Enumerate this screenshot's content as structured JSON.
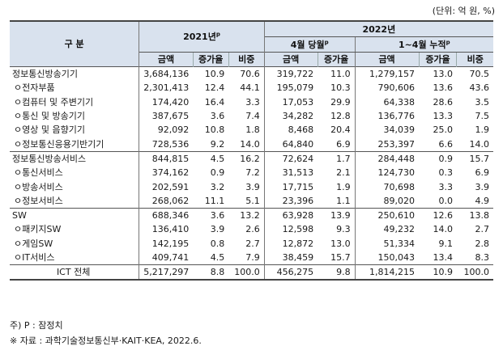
{
  "unit_note": "(단위: 억 원, %)",
  "header": {
    "category": "구   분",
    "year2021": "2021년",
    "year2021_sup": "p",
    "year2022": "2022년",
    "april_month": "4월 당월",
    "april_month_sup": "p",
    "jan_apr": "1~4월 누적",
    "jan_apr_sup": "p",
    "amount": "금액",
    "growth": "증가율",
    "share": "비중"
  },
  "rows": [
    {
      "label": "정보통신방송기기",
      "level": "main",
      "v": [
        "3,684,136",
        "10.9",
        "70.6",
        "319,722",
        "11.0",
        "1,279,157",
        "13.0",
        "70.5"
      ]
    },
    {
      "label": "ㅇ전자부품",
      "level": "sub",
      "v": [
        "2,301,413",
        "12.4",
        "44.1",
        "195,079",
        "10.3",
        "790,606",
        "13.6",
        "43.6"
      ]
    },
    {
      "label": "ㅇ컴퓨터 및 주변기기",
      "level": "sub",
      "v": [
        "174,420",
        "16.4",
        "3.3",
        "17,053",
        "29.9",
        "64,338",
        "28.6",
        "3.5"
      ]
    },
    {
      "label": "ㅇ통신 및 방송기기",
      "level": "sub",
      "v": [
        "387,675",
        "3.6",
        "7.4",
        "34,282",
        "12.8",
        "136,776",
        "13.3",
        "7.5"
      ]
    },
    {
      "label": "ㅇ영상 및 음향기기",
      "level": "sub",
      "v": [
        "92,092",
        "10.8",
        "1.8",
        "8,468",
        "20.4",
        "34,039",
        "25.0",
        "1.9"
      ]
    },
    {
      "label": "ㅇ정보통신응용기반기기",
      "level": "sub",
      "v": [
        "728,536",
        "9.2",
        "14.0",
        "64,840",
        "6.9",
        "253,397",
        "6.6",
        "14.0"
      ]
    },
    {
      "label": "정보통신방송서비스",
      "level": "main",
      "v": [
        "844,815",
        "4.5",
        "16.2",
        "72,624",
        "1.7",
        "284,448",
        "0.9",
        "15.7"
      ]
    },
    {
      "label": "ㅇ통신서비스",
      "level": "sub",
      "v": [
        "374,162",
        "0.9",
        "7.2",
        "31,513",
        "2.1",
        "124,730",
        "0.3",
        "6.9"
      ]
    },
    {
      "label": "ㅇ방송서비스",
      "level": "sub",
      "v": [
        "202,591",
        "3.2",
        "3.9",
        "17,715",
        "1.9",
        "70,698",
        "3.3",
        "3.9"
      ]
    },
    {
      "label": "ㅇ정보서비스",
      "level": "sub",
      "v": [
        "268,062",
        "11.1",
        "5.1",
        "23,396",
        "1.1",
        "89,020",
        "0.0",
        "4.9"
      ]
    },
    {
      "label": "SW",
      "level": "main",
      "v": [
        "688,346",
        "3.6",
        "13.2",
        "63,928",
        "13.9",
        "250,610",
        "12.6",
        "13.8"
      ]
    },
    {
      "label": "ㅇ패키지SW",
      "level": "sub",
      "v": [
        "136,410",
        "3.9",
        "2.6",
        "12,598",
        "9.3",
        "49,232",
        "14.0",
        "2.7"
      ]
    },
    {
      "label": "ㅇ게임SW",
      "level": "sub",
      "v": [
        "142,195",
        "0.8",
        "2.7",
        "12,872",
        "13.0",
        "51,334",
        "9.1",
        "2.8"
      ]
    },
    {
      "label": "ㅇIT서비스",
      "level": "sub",
      "v": [
        "409,741",
        "4.5",
        "7.9",
        "38,459",
        "15.7",
        "150,043",
        "13.4",
        "8.3"
      ]
    },
    {
      "label": "ICT 전체",
      "level": "total",
      "v": [
        "5,217,297",
        "8.8",
        "100.0",
        "456,275",
        "9.8",
        "1,814,215",
        "10.9",
        "100.0"
      ]
    }
  ],
  "notes": {
    "note1": "주) P : 잠정치",
    "note2": "※ 자료 : 과학기술정보통신부·KAIT·KEA, 2022.6."
  }
}
